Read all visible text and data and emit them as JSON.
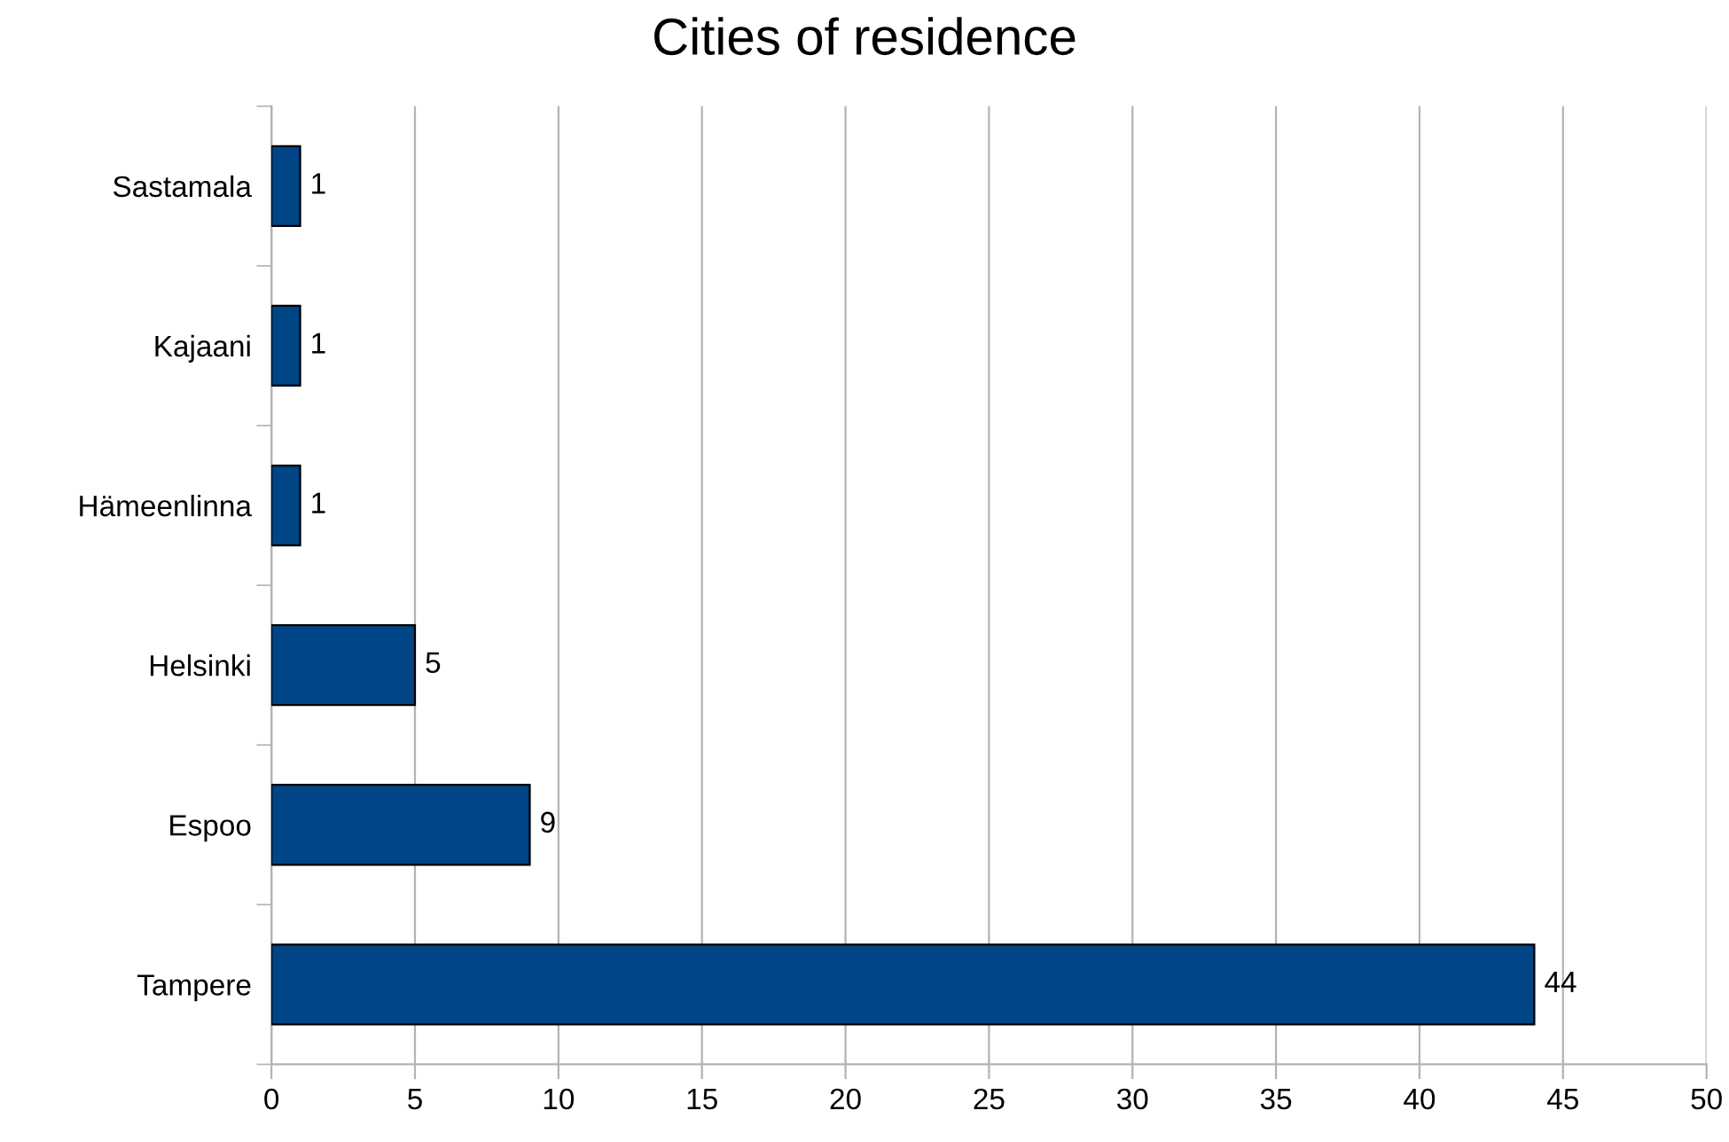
{
  "chart_data": {
    "type": "bar",
    "orientation": "horizontal",
    "title": "Cities of residence",
    "categories": [
      "Sastamala",
      "Kajaani",
      "Hämeenlinna",
      "Helsinki",
      "Espoo",
      "Tampere"
    ],
    "values": [
      1,
      1,
      1,
      5,
      9,
      44
    ],
    "color": "#004586",
    "xlim": [
      0,
      50
    ],
    "xticks": [
      0,
      5,
      10,
      15,
      20,
      25,
      30,
      35,
      40,
      45,
      50
    ],
    "grid": "x",
    "data_labels": true
  }
}
